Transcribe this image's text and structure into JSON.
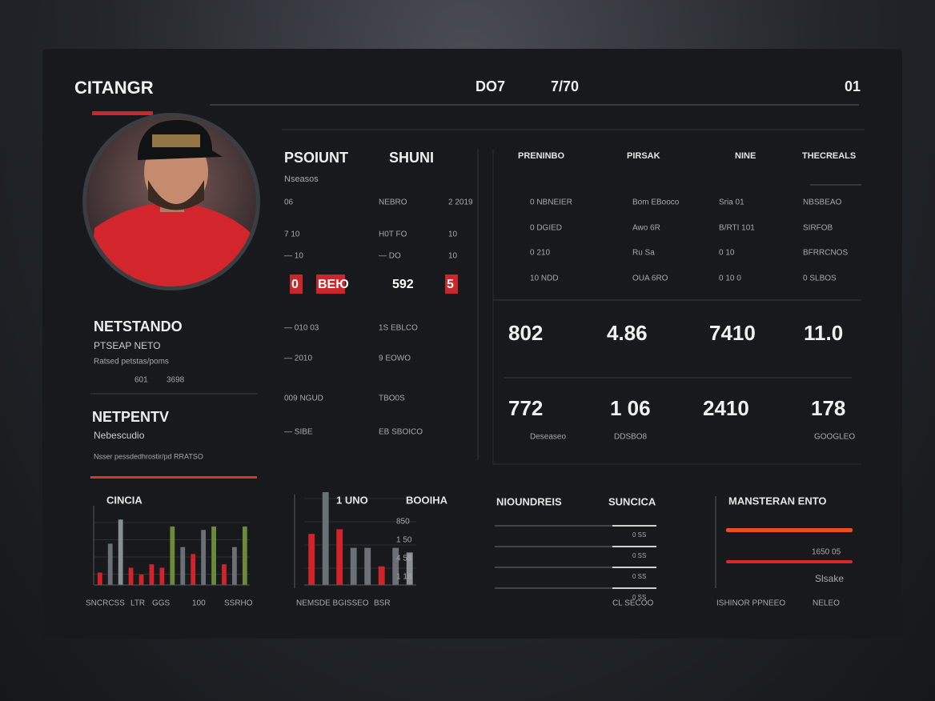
{
  "header": {
    "title": "CITANGR",
    "center_1": "DO7",
    "center_2": "7/70",
    "right": "01"
  },
  "profile": {
    "name": "NETSTANDO",
    "role": "PTSEAP NETO",
    "detail": "Ratsed petstas/poms",
    "stat_1": "601",
    "stat_2": "3698",
    "section": "NETPENTV",
    "section_sub": "Nebescudio",
    "section_note": "Nsser pessdedhrostir/pd RRATSO"
  },
  "stats": {
    "title_1": "PSOIUNT",
    "title_2": "SHUNI",
    "subtitle": "Nseasos",
    "rows": [
      [
        "06",
        "NEBRO",
        "2 2019"
      ],
      [
        "7 10",
        "H0T FO",
        "10"
      ],
      [
        "— 10",
        "— DO",
        "10"
      ],
      [
        "— 010 03",
        "1S EBLCO",
        ""
      ],
      [
        "— 2010",
        "9 EOWO",
        ""
      ],
      [
        "009 NGUD",
        "TBO0S",
        ""
      ],
      [
        "— SIBE",
        "EB SBOICO",
        ""
      ]
    ],
    "chips": [
      "0",
      "ВЕЮ",
      "592",
      "5"
    ]
  },
  "table": {
    "headers": [
      "PRENINBO",
      "PIRSAK",
      "NINE",
      "THECREALS"
    ],
    "rows": [
      [
        "0 NBNEIER",
        "Bom EBooco",
        "Sria 01",
        "NBSBEAO"
      ],
      [
        "0 DGIED",
        "Awo 6R",
        "B/RTI 101",
        "SIRFOB"
      ],
      [
        "0 210",
        "Ru Sa",
        "0 10",
        "BFRRCNOS"
      ],
      [
        "10 NDD",
        "OUA 6RO",
        "0 10 0",
        "0 SLBOS"
      ]
    ],
    "big_1": [
      "802",
      "4.86",
      "7410",
      "11.0"
    ],
    "big_2": [
      "772",
      "1 06",
      "2410",
      "178"
    ],
    "sublabels": [
      "Deseaseo",
      "DDSBO8",
      "GOOGLEO"
    ]
  },
  "charts": [
    {
      "type": "bar",
      "title": "CINCIA",
      "ylim": [
        0,
        100
      ],
      "values": [
        18,
        60,
        95,
        25,
        15,
        30,
        25,
        85,
        55,
        45,
        80,
        85,
        30,
        55,
        85
      ],
      "colors": [
        "#d0242a",
        "#6b7077",
        "#8a8f96",
        "#d0242a",
        "#d0242a",
        "#d0242a",
        "#d0242a",
        "#6c8a3c",
        "#6b7077",
        "#d0242a",
        "#6b7077",
        "#6c8a3c",
        "#d0242a",
        "#6b7077",
        "#6c8a3c"
      ],
      "x_labels": [
        "SNCRCSS",
        "LTR",
        "GGS",
        "100",
        "SSRHO"
      ]
    },
    {
      "type": "bar",
      "title": "1 UNO",
      "subtitle": "BOOIHA",
      "ylim": [
        0,
        100
      ],
      "values": [
        55,
        100,
        60,
        40,
        40,
        20,
        40,
        35
      ],
      "colors": [
        "#d0242a",
        "#6b7077",
        "#d0242a",
        "#6b7077",
        "#6b7077",
        "#d0242a",
        "#6b7077",
        "#8a8f96"
      ],
      "side_labels": [
        "850",
        "1 50",
        "4 58",
        "1 18"
      ],
      "x_labels": [
        "NEMSDE BGISSEO",
        "BSR"
      ]
    }
  ],
  "progress": {
    "title": "NIOUNDREIS",
    "subtitle": "SUNCICA",
    "labels": [
      "0 SS",
      "0 SS",
      "0 SS",
      "0 SS"
    ],
    "footer": "CL SECOO"
  },
  "meter": {
    "title": "MANSTERAN ENTO",
    "label_1": "1650 05",
    "label_2": "Slsake",
    "footer_1": "ISHINOR PPNEEO",
    "footer_2": "NELEO"
  }
}
